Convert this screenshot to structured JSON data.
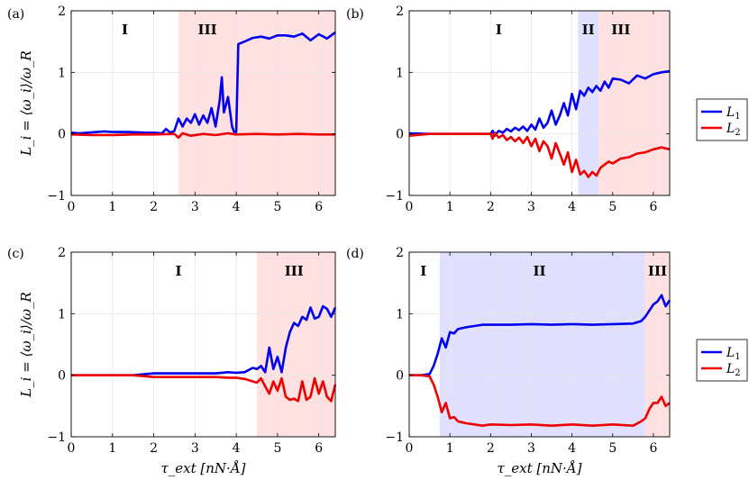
{
  "legend": {
    "entries": [
      {
        "label": "L1",
        "color": "#0000ee"
      },
      {
        "label": "L2",
        "color": "#ee0000"
      }
    ]
  },
  "axes": {
    "ylabel": "L_i = ⟨ω_i⟩/ω_R",
    "xlabel": "τ_ext [nN·Å]"
  },
  "chart_data": [
    {
      "panel": "(a)",
      "type": "line",
      "xlim": [
        0,
        6.4
      ],
      "ylim": [
        -1,
        2
      ],
      "xticks": [
        "0",
        "1",
        "2",
        "3",
        "4",
        "5",
        "6"
      ],
      "yticks": [
        "−1",
        "0",
        "1",
        "2"
      ],
      "grid": true,
      "regions": [
        {
          "label": "I",
          "x0": 0,
          "x1": 2.6,
          "color": "none",
          "label_x": 1.3
        },
        {
          "label": "III",
          "x0": 2.6,
          "x1": 6.4,
          "color": "#ffe1e1",
          "label_x": 3.3
        }
      ],
      "series": [
        {
          "name": "L1",
          "color": "#0000ee",
          "x": [
            0,
            0.2,
            0.4,
            0.8,
            1.0,
            1.4,
            1.8,
            2.0,
            2.2,
            2.3,
            2.4,
            2.5,
            2.6,
            2.7,
            2.8,
            2.9,
            3.0,
            3.1,
            3.2,
            3.3,
            3.4,
            3.5,
            3.6,
            3.65,
            3.7,
            3.8,
            3.9,
            3.95,
            4.0,
            4.05,
            4.2,
            4.4,
            4.6,
            4.8,
            5.0,
            5.2,
            5.4,
            5.6,
            5.8,
            6.0,
            6.2,
            6.4
          ],
          "y": [
            0.02,
            0.01,
            0.02,
            0.04,
            0.03,
            0.03,
            0.02,
            0.02,
            0.01,
            0.08,
            0.02,
            0.05,
            0.25,
            0.12,
            0.25,
            0.18,
            0.32,
            0.15,
            0.3,
            0.18,
            0.42,
            0.12,
            0.55,
            0.92,
            0.35,
            0.6,
            0.12,
            0.03,
            0.03,
            1.46,
            1.5,
            1.56,
            1.58,
            1.55,
            1.6,
            1.6,
            1.58,
            1.63,
            1.52,
            1.62,
            1.55,
            1.65
          ]
        },
        {
          "name": "L2",
          "color": "#ee0000",
          "x": [
            0,
            0.5,
            1.0,
            1.5,
            2.0,
            2.5,
            2.6,
            2.7,
            2.9,
            3.2,
            3.5,
            3.8,
            4.0,
            4.5,
            5.0,
            5.5,
            6.0,
            6.4
          ],
          "y": [
            -0.01,
            -0.02,
            -0.02,
            -0.01,
            -0.01,
            0,
            -0.06,
            0.01,
            -0.03,
            0,
            -0.02,
            0.01,
            -0.01,
            0,
            -0.01,
            0,
            -0.01,
            -0.01
          ]
        }
      ]
    },
    {
      "panel": "(b)",
      "type": "line",
      "xlim": [
        0,
        6.4
      ],
      "ylim": [
        -1,
        2
      ],
      "xticks": [
        "0",
        "1",
        "2",
        "3",
        "4",
        "5",
        "6"
      ],
      "yticks": [
        "−1",
        "0",
        "1",
        "2"
      ],
      "grid": true,
      "regions": [
        {
          "label": "I",
          "x0": 0,
          "x1": 4.15,
          "color": "none",
          "label_x": 2.2
        },
        {
          "label": "II",
          "x0": 4.15,
          "x1": 4.65,
          "color": "#e1e1ff",
          "label_x": 4.4
        },
        {
          "label": "III",
          "x0": 4.65,
          "x1": 6.4,
          "color": "#ffe1e1",
          "label_x": 5.2
        }
      ],
      "series": [
        {
          "name": "L1",
          "color": "#0000ee",
          "x": [
            0,
            0.5,
            1.0,
            1.5,
            2.0,
            2.05,
            2.1,
            2.2,
            2.3,
            2.4,
            2.5,
            2.6,
            2.7,
            2.8,
            2.9,
            3.0,
            3.1,
            3.2,
            3.3,
            3.4,
            3.5,
            3.6,
            3.7,
            3.8,
            3.9,
            4.0,
            4.1,
            4.2,
            4.3,
            4.4,
            4.5,
            4.6,
            4.7,
            4.8,
            4.9,
            5.0,
            5.2,
            5.4,
            5.6,
            5.8,
            6.0,
            6.2,
            6.4
          ],
          "y": [
            0.01,
            0.0,
            0.0,
            0.0,
            0.0,
            0.05,
            -0.03,
            0.05,
            0.02,
            0.08,
            0.04,
            0.1,
            0.06,
            0.12,
            0.05,
            0.15,
            0.07,
            0.25,
            0.1,
            0.18,
            0.38,
            0.15,
            0.3,
            0.5,
            0.3,
            0.65,
            0.4,
            0.7,
            0.62,
            0.75,
            0.68,
            0.78,
            0.7,
            0.85,
            0.75,
            0.9,
            0.88,
            0.82,
            0.95,
            0.9,
            0.97,
            1.0,
            1.02
          ]
        },
        {
          "name": "L2",
          "color": "#ee0000",
          "x": [
            0,
            0.5,
            1.0,
            1.5,
            2.0,
            2.05,
            2.1,
            2.2,
            2.3,
            2.4,
            2.5,
            2.6,
            2.7,
            2.8,
            2.9,
            3.0,
            3.1,
            3.2,
            3.3,
            3.4,
            3.5,
            3.6,
            3.7,
            3.8,
            3.9,
            4.0,
            4.1,
            4.2,
            4.3,
            4.4,
            4.5,
            4.6,
            4.7,
            4.8,
            4.9,
            5.0,
            5.2,
            5.4,
            5.6,
            5.8,
            6.0,
            6.2,
            6.4
          ],
          "y": [
            -0.03,
            0,
            0,
            0,
            0,
            -0.08,
            0.02,
            -0.06,
            -0.02,
            -0.1,
            -0.05,
            -0.12,
            -0.06,
            -0.15,
            -0.05,
            -0.2,
            -0.08,
            -0.28,
            -0.12,
            -0.2,
            -0.4,
            -0.15,
            -0.32,
            -0.5,
            -0.3,
            -0.62,
            -0.42,
            -0.66,
            -0.6,
            -0.7,
            -0.62,
            -0.68,
            -0.55,
            -0.5,
            -0.45,
            -0.48,
            -0.4,
            -0.38,
            -0.32,
            -0.3,
            -0.25,
            -0.22,
            -0.25
          ]
        }
      ]
    },
    {
      "panel": "(c)",
      "type": "line",
      "xlim": [
        0,
        6.4
      ],
      "ylim": [
        -1,
        2
      ],
      "xticks": [
        "0",
        "1",
        "2",
        "3",
        "4",
        "5",
        "6"
      ],
      "yticks": [
        "−1",
        "0",
        "1",
        "2"
      ],
      "grid": true,
      "regions": [
        {
          "label": "I",
          "x0": 0,
          "x1": 4.5,
          "color": "none",
          "label_x": 2.6
        },
        {
          "label": "III",
          "x0": 4.5,
          "x1": 6.4,
          "color": "#ffe1e1",
          "label_x": 5.4
        }
      ],
      "series": [
        {
          "name": "L1",
          "color": "#0000ee",
          "x": [
            0,
            0.5,
            1.0,
            1.5,
            2.0,
            2.5,
            3.0,
            3.5,
            3.8,
            4.0,
            4.2,
            4.4,
            4.5,
            4.6,
            4.7,
            4.8,
            4.9,
            5.0,
            5.1,
            5.2,
            5.3,
            5.4,
            5.5,
            5.6,
            5.7,
            5.8,
            5.9,
            6.0,
            6.1,
            6.2,
            6.3,
            6.4
          ],
          "y": [
            0,
            0,
            0,
            0,
            0.03,
            0.03,
            0.03,
            0.03,
            0.05,
            0.04,
            0.05,
            0.12,
            0.1,
            0.15,
            0.05,
            0.45,
            0.1,
            0.3,
            0.05,
            0.45,
            0.7,
            0.85,
            0.8,
            0.95,
            0.9,
            1.1,
            0.92,
            0.95,
            1.12,
            1.08,
            0.95,
            1.1
          ]
        },
        {
          "name": "L2",
          "color": "#ee0000",
          "x": [
            0,
            0.5,
            1.0,
            1.5,
            2.0,
            2.5,
            3.0,
            3.5,
            3.8,
            4.0,
            4.2,
            4.4,
            4.5,
            4.6,
            4.7,
            4.8,
            4.9,
            5.0,
            5.1,
            5.2,
            5.3,
            5.4,
            5.5,
            5.6,
            5.7,
            5.8,
            5.9,
            6.0,
            6.1,
            6.2,
            6.3,
            6.4
          ],
          "y": [
            0,
            0,
            0,
            0,
            -0.03,
            -0.03,
            -0.03,
            -0.03,
            -0.04,
            -0.04,
            -0.06,
            -0.1,
            -0.12,
            -0.05,
            -0.18,
            -0.3,
            -0.1,
            -0.25,
            -0.05,
            -0.35,
            -0.4,
            -0.38,
            -0.42,
            -0.1,
            -0.4,
            -0.35,
            -0.05,
            -0.3,
            -0.1,
            -0.35,
            -0.42,
            -0.15
          ]
        }
      ]
    },
    {
      "panel": "(d)",
      "type": "line",
      "xlim": [
        0,
        6.4
      ],
      "ylim": [
        -1,
        2
      ],
      "xticks": [
        "0",
        "1",
        "2",
        "3",
        "4",
        "5",
        "6"
      ],
      "yticks": [
        "−1",
        "0",
        "1",
        "2"
      ],
      "grid": true,
      "regions": [
        {
          "label": "I",
          "x0": 0,
          "x1": 0.75,
          "color": "none",
          "label_x": 0.35
        },
        {
          "label": "II",
          "x0": 0.75,
          "x1": 5.8,
          "color": "#e1e1ff",
          "label_x": 3.2
        },
        {
          "label": "III",
          "x0": 5.8,
          "x1": 6.4,
          "color": "#ffe1e1",
          "label_x": 6.1
        }
      ],
      "series": [
        {
          "name": "L1",
          "color": "#0000ee",
          "x": [
            0,
            0.3,
            0.5,
            0.6,
            0.7,
            0.8,
            0.9,
            1.0,
            1.1,
            1.2,
            1.4,
            1.6,
            1.8,
            2.0,
            2.5,
            3.0,
            3.5,
            4.0,
            4.5,
            5.0,
            5.5,
            5.7,
            5.8,
            5.9,
            6.0,
            6.1,
            6.2,
            6.3,
            6.4
          ],
          "y": [
            0,
            0,
            0.02,
            0.15,
            0.35,
            0.6,
            0.45,
            0.7,
            0.68,
            0.75,
            0.78,
            0.8,
            0.82,
            0.82,
            0.82,
            0.83,
            0.82,
            0.83,
            0.82,
            0.83,
            0.84,
            0.88,
            0.95,
            1.05,
            1.15,
            1.2,
            1.3,
            1.12,
            1.22
          ]
        },
        {
          "name": "L2",
          "color": "#ee0000",
          "x": [
            0,
            0.3,
            0.5,
            0.6,
            0.7,
            0.8,
            0.9,
            1.0,
            1.1,
            1.2,
            1.4,
            1.6,
            1.8,
            2.0,
            2.5,
            3.0,
            3.5,
            4.0,
            4.5,
            5.0,
            5.5,
            5.7,
            5.8,
            5.9,
            6.0,
            6.1,
            6.2,
            6.3,
            6.4
          ],
          "y": [
            0,
            0,
            -0.02,
            -0.15,
            -0.35,
            -0.6,
            -0.45,
            -0.7,
            -0.68,
            -0.75,
            -0.78,
            -0.8,
            -0.82,
            -0.8,
            -0.81,
            -0.8,
            -0.82,
            -0.8,
            -0.82,
            -0.8,
            -0.82,
            -0.75,
            -0.7,
            -0.55,
            -0.45,
            -0.45,
            -0.35,
            -0.5,
            -0.45
          ]
        }
      ]
    }
  ]
}
